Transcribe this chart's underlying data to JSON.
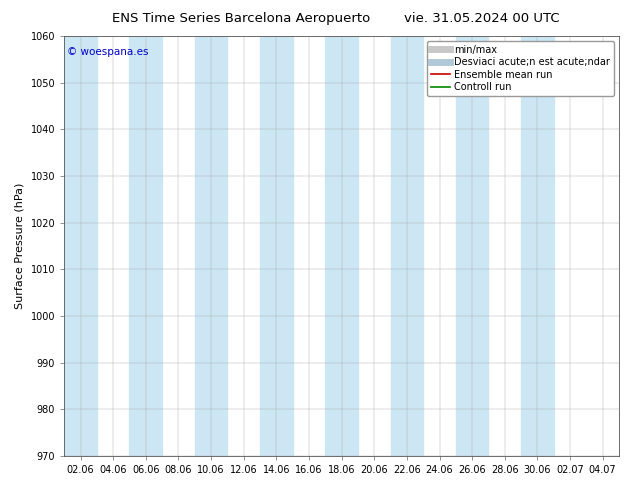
{
  "title_left": "ENS Time Series Barcelona Aeropuerto",
  "title_right": "vie. 31.05.2024 00 UTC",
  "ylabel": "Surface Pressure (hPa)",
  "ylim": [
    970,
    1060
  ],
  "yticks": [
    970,
    980,
    990,
    1000,
    1010,
    1020,
    1030,
    1040,
    1050,
    1060
  ],
  "x_labels": [
    "02.06",
    "04.06",
    "06.06",
    "08.06",
    "10.06",
    "12.06",
    "14.06",
    "16.06",
    "18.06",
    "20.06",
    "22.06",
    "24.06",
    "26.06",
    "28.06",
    "30.06",
    "02.07",
    "04.07"
  ],
  "shaded_band_color": "#cce6f4",
  "background_color": "#ffffff",
  "watermark": "© woespana.es",
  "watermark_color": "#0000cc",
  "legend_items": [
    {
      "label": "min/max",
      "color": "#c8c8c8",
      "lw": 5
    },
    {
      "label": "Desviaci acute;n est acute;ndar",
      "color": "#b0c8d8",
      "lw": 5
    },
    {
      "label": "Ensemble mean run",
      "color": "#cc0000",
      "lw": 1.2
    },
    {
      "label": "Controll run",
      "color": "#008800",
      "lw": 1.2
    }
  ],
  "title_fontsize": 9.5,
  "ylabel_fontsize": 8,
  "tick_fontsize": 7,
  "legend_fontsize": 7,
  "watermark_fontsize": 7.5
}
